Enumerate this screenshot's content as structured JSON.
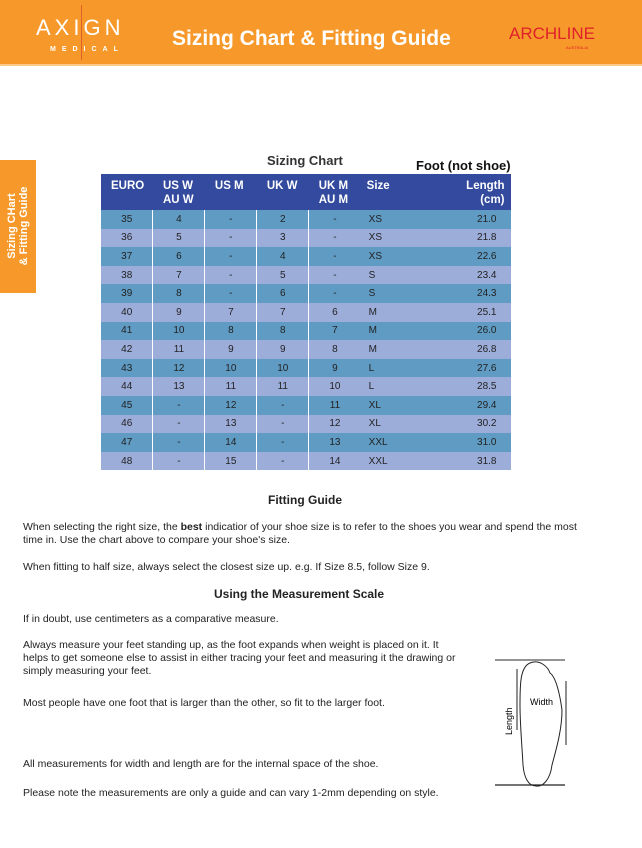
{
  "header": {
    "brand": "AXIGN",
    "brand_sub": "MEDICAL",
    "title": "Sizing Chart & Fitting Guide",
    "partner": "ARCHLINE",
    "partner_sub": "AUSTRALIA",
    "color": "#f7992a"
  },
  "sidetab": {
    "line1": "Sizing CHart",
    "line2": "& Fitting Guide"
  },
  "chart": {
    "title": "Sizing Chart",
    "note": "Foot (not shoe)",
    "columns": [
      [
        "EURO",
        ""
      ],
      [
        "US W",
        "AU W"
      ],
      [
        "US M",
        ""
      ],
      [
        "UK W",
        ""
      ],
      [
        "UK M",
        "AU M"
      ],
      [
        "Size",
        ""
      ],
      [
        "Length",
        "(cm)"
      ]
    ],
    "rows": [
      [
        "35",
        "4",
        "-",
        "2",
        "-",
        "XS",
        "21.0"
      ],
      [
        "36",
        "5",
        "-",
        "3",
        "-",
        "XS",
        "21.8"
      ],
      [
        "37",
        "6",
        "-",
        "4",
        "-",
        "XS",
        "22.6"
      ],
      [
        "38",
        "7",
        "-",
        "5",
        "-",
        "S",
        "23.4"
      ],
      [
        "39",
        "8",
        "-",
        "6",
        "-",
        "S",
        "24.3"
      ],
      [
        "40",
        "9",
        "7",
        "7",
        "6",
        "M",
        "25.1"
      ],
      [
        "41",
        "10",
        "8",
        "8",
        "7",
        "M",
        "26.0"
      ],
      [
        "42",
        "11",
        "9",
        "9",
        "8",
        "M",
        "26.8"
      ],
      [
        "43",
        "12",
        "10",
        "10",
        "9",
        "L",
        "27.6"
      ],
      [
        "44",
        "13",
        "11",
        "11",
        "10",
        "L",
        "28.5"
      ],
      [
        "45",
        "-",
        "12",
        "-",
        "11",
        "XL",
        "29.4"
      ],
      [
        "46",
        "-",
        "13",
        "-",
        "12",
        "XL",
        "30.2"
      ],
      [
        "47",
        "-",
        "14",
        "-",
        "13",
        "XXL",
        "31.0"
      ],
      [
        "48",
        "-",
        "15",
        "-",
        "14",
        "XXL",
        "31.8"
      ]
    ]
  },
  "fitting": {
    "title": "Fitting Guide",
    "p1a": "When selecting the right size, the ",
    "p1b": "best",
    "p1c": " indicatior of your shoe size is to refer to the shoes you wear and spend the most time in. Use the chart above to compare your shoe's size.",
    "p2": "When fitting to half size, always select the closest size up. e.g. If Size 8.5, follow Size 9."
  },
  "measure": {
    "title": "Using the Measurement Scale",
    "p1": "If in doubt, use centimeters as a comparative measure.",
    "p2": "Always measure your feet standing up, as the foot expands when weight is placed on it. It helps to get someone else to assist in either tracing your feet and measuring it the drawing or simply measuring your feet.",
    "p3": "Most people have one foot that is larger than the other, so fit to the larger foot.",
    "p4": "All measurements for width and length are for the internal space of the shoe.",
    "p5": "Please note the measurements are only a guide and can vary 1-2mm depending on style.",
    "diagram_length": "Length",
    "diagram_width": "Width"
  }
}
